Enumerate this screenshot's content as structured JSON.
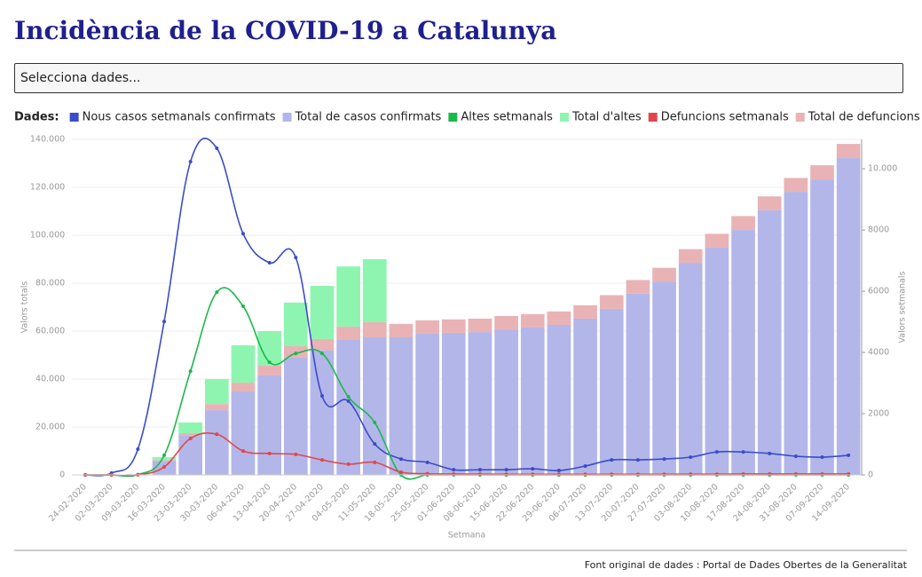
{
  "page": {
    "title": "Incidència de la COVID-19 a Catalunya",
    "select_placeholder": "Selecciona dades...",
    "legend_title": "Dades:",
    "source": "Font original de dades : Portal de Dades Obertes de la Generalitat"
  },
  "chart_data": {
    "type": "combo",
    "x_label": "Setmana",
    "y_label": "Valors totals",
    "y2_label": "Valors setmanals",
    "categories": [
      "24-02-2020",
      "02-03-2020",
      "09-03-2020",
      "16-03-2020",
      "23-03-2020",
      "30-03-2020",
      "06-04-2020",
      "13-04-2020",
      "20-04-2020",
      "27-04-2020",
      "04-05-2020",
      "11-05-2020",
      "18-05-2020",
      "25-05-2020",
      "01-06-2020",
      "08-06-2020",
      "15-06-2020",
      "22-06-2020",
      "29-06-2020",
      "06-07-2020",
      "13-07-2020",
      "20-07-2020",
      "27-07-2020",
      "03-08-2020",
      "10-08-2020",
      "17-08-2020",
      "24-08-2020",
      "31-08-2020",
      "07-09-2020",
      "14-09-2020"
    ],
    "ylim": [
      0,
      140000
    ],
    "yticks": [
      0,
      {
        "value": 20000,
        "label": "20.000"
      },
      {
        "value": 40000,
        "label": "40.000"
      },
      {
        "value": 60000,
        "label": "60.000"
      },
      {
        "value": 80000,
        "label": "80.000"
      },
      {
        "value": 100000,
        "label": "100.000"
      },
      {
        "value": 120000,
        "label": "120.000"
      },
      {
        "value": 140000,
        "label": "140.000"
      }
    ],
    "y2lim": [
      0,
      10960
    ],
    "y2ticks": [
      0,
      2000,
      4000,
      6000,
      8000,
      {
        "value": 10000,
        "label": "10.000"
      }
    ],
    "grid": true,
    "series": [
      {
        "name": "Nous casos setmanals confirmats",
        "type": "line",
        "axis": "y2",
        "color": "#3b4cc8",
        "values": [
          0,
          60,
          840,
          5010,
          10230,
          10670,
          7880,
          6930,
          7100,
          2580,
          2410,
          1010,
          520,
          410,
          170,
          170,
          170,
          200,
          145,
          290,
          490,
          490,
          520,
          580,
          750,
          750,
          700,
          610,
          580,
          640
        ]
      },
      {
        "name": "Total de casos confirmats",
        "type": "bar",
        "color": "#b3b6e9",
        "values": [
          0,
          20,
          300,
          5900,
          16300,
          27000,
          34800,
          41500,
          48900,
          52000,
          56300,
          57400,
          57400,
          58900,
          59300,
          59600,
          60700,
          61500,
          62600,
          65200,
          69300,
          75600,
          80700,
          88500,
          94800,
          102200,
          110400,
          118100,
          123300,
          132200
        ]
      },
      {
        "name": "Altes setmanals",
        "type": "line",
        "axis": "y2",
        "color": "#1cb84c",
        "values": [
          0,
          0,
          10,
          640,
          3390,
          5970,
          5510,
          3680,
          3970,
          3970,
          2550,
          1710,
          0,
          0,
          0,
          0,
          0,
          0,
          0,
          0,
          0,
          0,
          0,
          0,
          0,
          0,
          0,
          0,
          0,
          0
        ]
      },
      {
        "name": "Total d'altes",
        "type": "bar",
        "color": "#8ef5b0",
        "values": [
          0,
          0,
          10,
          1200,
          4500,
          10400,
          15600,
          14400,
          18200,
          22200,
          25100,
          26300,
          null,
          null,
          null,
          null,
          null,
          null,
          null,
          null,
          null,
          null,
          null,
          null,
          null,
          null,
          null,
          null,
          null,
          null
        ]
      },
      {
        "name": "Defuncions setmanals",
        "type": "line",
        "axis": "y2",
        "color": "#e0474c",
        "values": [
          0,
          0,
          5,
          260,
          1190,
          1330,
          780,
          700,
          670,
          490,
          350,
          410,
          90,
          40,
          30,
          25,
          20,
          20,
          20,
          20,
          20,
          20,
          20,
          25,
          25,
          30,
          30,
          30,
          30,
          30
        ]
      },
      {
        "name": "Total de defuncions",
        "type": "bar",
        "color": "#e9b3b6",
        "values": [
          0,
          0,
          10,
          300,
          1100,
          2600,
          3700,
          4100,
          4800,
          4700,
          5600,
          6300,
          5600,
          5600,
          5600,
          5600,
          5600,
          5600,
          5600,
          5600,
          5700,
          5700,
          5700,
          5700,
          5800,
          5800,
          5800,
          5800,
          5900,
          5900
        ]
      }
    ]
  }
}
